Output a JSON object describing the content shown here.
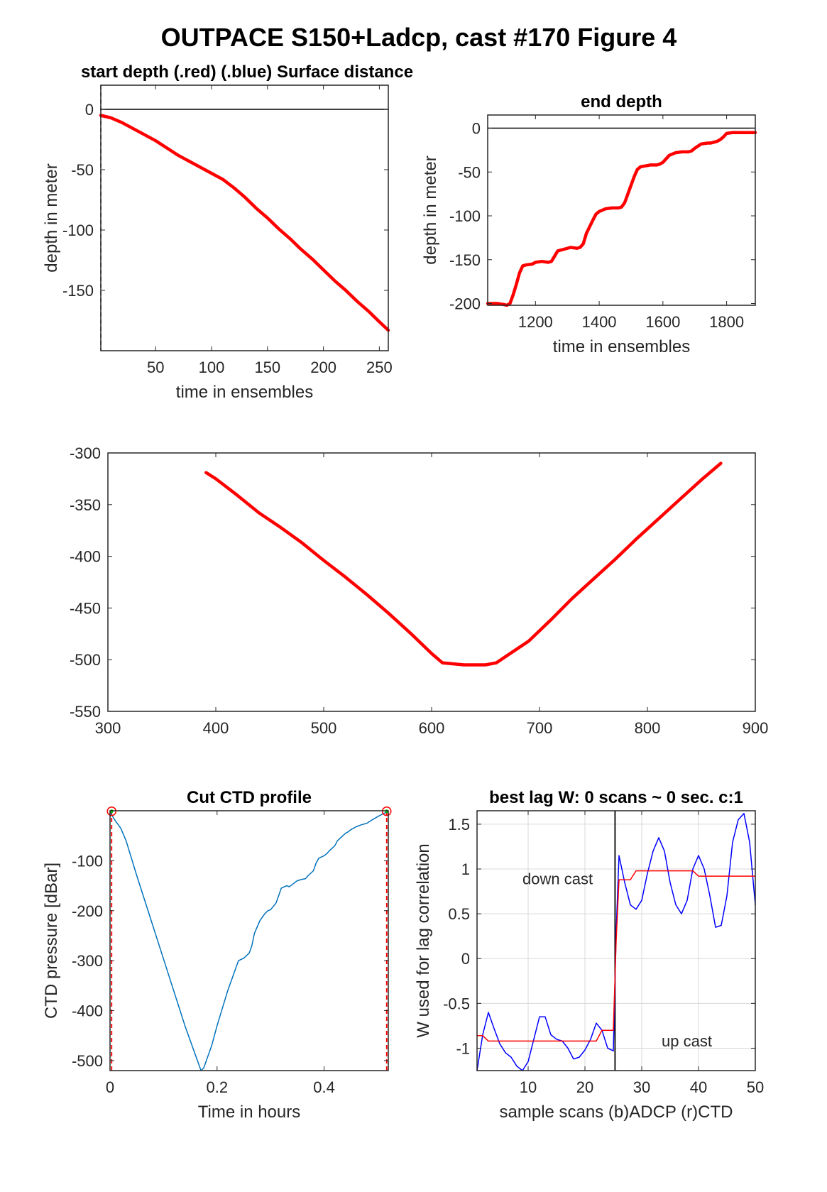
{
  "figure": {
    "title": "OUTPACE S150+Ladcp, cast #170   Figure 4"
  },
  "chart_data": [
    {
      "id": "start",
      "type": "line",
      "title": "start depth (.red) (.blue) Surface distance",
      "xlabel": "time in ensembles",
      "ylabel": "depth in meter",
      "xlim": [
        1,
        258
      ],
      "ylim": [
        -200,
        20
      ],
      "xticks": [
        50,
        100,
        150,
        200,
        250
      ],
      "yticks": [
        0,
        -50,
        -100,
        -150
      ],
      "grid": false,
      "reference_lines": [
        {
          "orientation": "horizontal",
          "value": 0,
          "color": "#000000"
        },
        {
          "orientation": "vertical",
          "value": 1,
          "color": "#000000",
          "dashed": true
        }
      ],
      "series": [
        {
          "color": "#ff0000",
          "x": [
            1,
            10,
            20,
            30,
            40,
            50,
            60,
            70,
            80,
            90,
            100,
            110,
            120,
            130,
            140,
            150,
            160,
            170,
            180,
            190,
            200,
            210,
            220,
            230,
            240,
            250,
            258
          ],
          "y": [
            -5,
            -7,
            -11,
            -16,
            -21,
            -26,
            -32,
            -38,
            -43,
            -48,
            -53,
            -58,
            -65,
            -73,
            -82,
            -90,
            -99,
            -107,
            -116,
            -124,
            -133,
            -142,
            -150,
            -159,
            -167,
            -176,
            -183
          ]
        }
      ]
    },
    {
      "id": "end",
      "type": "line",
      "title": "end depth",
      "xlabel": "time in ensembles",
      "ylabel": "depth in meter",
      "xlim": [
        1050,
        1890
      ],
      "ylim": [
        -202,
        15
      ],
      "xticks": [
        1200,
        1400,
        1600,
        1800
      ],
      "yticks": [
        0,
        -50,
        -100,
        -150,
        -200
      ],
      "grid": false,
      "reference_lines": [
        {
          "orientation": "horizontal",
          "value": 0,
          "color": "#000000"
        }
      ],
      "series": [
        {
          "color": "#ff0000",
          "x": [
            1050,
            1080,
            1100,
            1110,
            1120,
            1130,
            1140,
            1150,
            1160,
            1170,
            1190,
            1200,
            1220,
            1240,
            1250,
            1260,
            1270,
            1290,
            1310,
            1330,
            1340,
            1350,
            1360,
            1380,
            1390,
            1400,
            1420,
            1440,
            1460,
            1470,
            1480,
            1490,
            1500,
            1510,
            1520,
            1530,
            1560,
            1580,
            1590,
            1600,
            1620,
            1640,
            1660,
            1680,
            1690,
            1700,
            1720,
            1740,
            1750,
            1760,
            1770,
            1780,
            1790,
            1800,
            1820,
            1830,
            1840,
            1860,
            1890
          ],
          "y": [
            -200,
            -200,
            -201,
            -202,
            -200,
            -190,
            -178,
            -165,
            -157,
            -156,
            -155,
            -153,
            -152,
            -153,
            -152,
            -146,
            -140,
            -138,
            -136,
            -137,
            -136,
            -132,
            -120,
            -105,
            -98,
            -95,
            -92,
            -91,
            -91,
            -90,
            -85,
            -75,
            -65,
            -55,
            -47,
            -44,
            -42,
            -42,
            -41,
            -39,
            -31,
            -28,
            -27,
            -27,
            -26,
            -23,
            -18,
            -17,
            -17,
            -16,
            -15,
            -13,
            -10,
            -6,
            -5,
            -5,
            -5,
            -5,
            -5
          ]
        }
      ]
    },
    {
      "id": "middle",
      "type": "line",
      "title": "",
      "xlabel": "",
      "ylabel": "",
      "xlim": [
        300,
        900
      ],
      "ylim": [
        -550,
        -300
      ],
      "xticks": [
        300,
        400,
        500,
        600,
        700,
        800,
        900
      ],
      "yticks": [
        -300,
        -350,
        -400,
        -450,
        -500,
        -550
      ],
      "grid": false,
      "series": [
        {
          "color": "#ff0000",
          "x": [
            391,
            400,
            420,
            440,
            460,
            480,
            500,
            520,
            540,
            560,
            580,
            600,
            610,
            630,
            650,
            660,
            670,
            690,
            710,
            730,
            750,
            770,
            790,
            810,
            830,
            850,
            868
          ],
          "y": [
            -319,
            -325,
            -341,
            -358,
            -372,
            -387,
            -404,
            -420,
            -437,
            -455,
            -474,
            -494,
            -503,
            -505,
            -505,
            -503,
            -496,
            -482,
            -462,
            -441,
            -422,
            -403,
            -383,
            -364,
            -345,
            -326,
            -310
          ]
        }
      ]
    },
    {
      "id": "cut",
      "type": "line",
      "title": "Cut CTD profile",
      "xlabel": "Time in hours",
      "ylabel": "CTD pressure [dBar]",
      "xlim": [
        0,
        0.52
      ],
      "ylim": [
        -520,
        0
      ],
      "xticks": [
        0,
        0.2,
        0.4
      ],
      "yticks": [
        -100,
        -200,
        -300,
        -400,
        -500
      ],
      "grid": false,
      "markers": [
        {
          "x": 0.003,
          "y": -1,
          "color": "#ff0000"
        },
        {
          "x": 0.517,
          "y": -1,
          "color": "#ff0000"
        }
      ],
      "vlines": [
        {
          "value": 0.003,
          "color": "#ff0000",
          "dashed": true
        },
        {
          "value": 0.517,
          "color": "#ff0000",
          "dashed": true
        }
      ],
      "series": [
        {
          "color": "#0072bd",
          "x": [
            0,
            0.01,
            0.02,
            0.03,
            0.05,
            0.08,
            0.11,
            0.14,
            0.16,
            0.17,
            0.175,
            0.18,
            0.19,
            0.2,
            0.22,
            0.24,
            0.25,
            0.26,
            0.265,
            0.27,
            0.28,
            0.29,
            0.295,
            0.3,
            0.31,
            0.315,
            0.32,
            0.33,
            0.335,
            0.34,
            0.35,
            0.36,
            0.365,
            0.37,
            0.38,
            0.385,
            0.39,
            0.4,
            0.405,
            0.41,
            0.42,
            0.425,
            0.43,
            0.44,
            0.445,
            0.45,
            0.46,
            0.47,
            0.48,
            0.49,
            0.5,
            0.51,
            0.517
          ],
          "y": [
            -3,
            -20,
            -35,
            -60,
            -130,
            -230,
            -330,
            -430,
            -490,
            -520,
            -515,
            -500,
            -470,
            -430,
            -360,
            -300,
            -295,
            -285,
            -270,
            -245,
            -220,
            -205,
            -200,
            -198,
            -185,
            -170,
            -155,
            -150,
            -152,
            -148,
            -140,
            -137,
            -136,
            -130,
            -120,
            -105,
            -95,
            -90,
            -86,
            -80,
            -70,
            -60,
            -55,
            -45,
            -42,
            -38,
            -32,
            -28,
            -25,
            -18,
            -12,
            -6,
            -3
          ]
        }
      ]
    },
    {
      "id": "lag",
      "type": "line",
      "title": "best lag W: 0 scans ~ 0 sec.  c:1",
      "xlabel": "sample scans (b)ADCP (r)CTD",
      "ylabel": "W used for lag correlation",
      "xlim": [
        1,
        50
      ],
      "ylim": [
        -1.25,
        1.65
      ],
      "xticks": [
        10,
        20,
        30,
        40,
        50
      ],
      "yticks": [
        1.5,
        1,
        0.5,
        0,
        -0.5,
        -1
      ],
      "grid": true,
      "annotations": [
        {
          "text": "down cast",
          "x": 9,
          "y": 0.83
        },
        {
          "text": "up cast",
          "x": 33.5,
          "y": -0.98
        }
      ],
      "vlines": [
        {
          "value": 25.3,
          "color": "#000000"
        }
      ],
      "series": [
        {
          "name": "(b)ADCP",
          "color": "#0000ff",
          "x": [
            1,
            2,
            3,
            4,
            5,
            6,
            7,
            8,
            9,
            10,
            11,
            12,
            13,
            14,
            15,
            16,
            17,
            18,
            19,
            20,
            21,
            22,
            23,
            24,
            25,
            25.5,
            26,
            27,
            28,
            29,
            30,
            31,
            32,
            33,
            34,
            35,
            36,
            37,
            38,
            39,
            40,
            41,
            42,
            43,
            44,
            45,
            46,
            47,
            48,
            49,
            50
          ],
          "y": [
            -1.25,
            -0.85,
            -0.6,
            -0.78,
            -0.95,
            -1.05,
            -1.1,
            -1.2,
            -1.25,
            -1.15,
            -0.9,
            -0.65,
            -0.65,
            -0.85,
            -0.9,
            -0.92,
            -1.0,
            -1.12,
            -1.1,
            -1.02,
            -0.9,
            -0.72,
            -0.8,
            -1.0,
            -1.03,
            0.3,
            1.15,
            0.85,
            0.6,
            0.55,
            0.65,
            0.95,
            1.2,
            1.35,
            1.2,
            0.85,
            0.6,
            0.5,
            0.65,
            1.0,
            1.15,
            1.0,
            0.7,
            0.35,
            0.37,
            0.7,
            1.3,
            1.55,
            1.62,
            1.3,
            0.6
          ]
        },
        {
          "name": "(r)CTD",
          "color": "#ff0000",
          "x": [
            1,
            2,
            3,
            4,
            10,
            20,
            22,
            23,
            24,
            25,
            25.5,
            26,
            27,
            28,
            29,
            30,
            35,
            39,
            40,
            41,
            45,
            50
          ],
          "y": [
            -0.86,
            -0.86,
            -0.92,
            -0.92,
            -0.92,
            -0.92,
            -0.92,
            -0.8,
            -0.8,
            -0.8,
            0.2,
            0.88,
            0.88,
            0.88,
            0.98,
            0.98,
            0.98,
            0.98,
            0.92,
            0.92,
            0.92,
            0.92
          ]
        }
      ]
    }
  ]
}
